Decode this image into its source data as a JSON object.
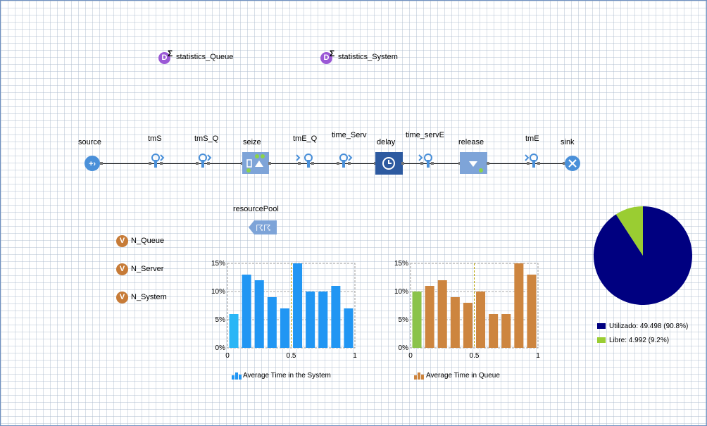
{
  "statistics": [
    {
      "icon": "D",
      "label": "statistics_Queue"
    },
    {
      "icon": "D",
      "label": "statistics_System"
    }
  ],
  "flow": {
    "source": "source",
    "tmS": "tmS",
    "tmS_Q": "tmS_Q",
    "seize": "seize",
    "tmE_Q": "tmE_Q",
    "time_Serv": "time_Serv",
    "delay": "delay",
    "time_servE": "time_servE",
    "release": "release",
    "tmE": "tmE",
    "sink": "sink"
  },
  "resourcePool": "resourcePool",
  "variables": [
    {
      "icon": "V",
      "label": "N_Queue"
    },
    {
      "icon": "V",
      "label": "N_Server"
    },
    {
      "icon": "V",
      "label": "N_System"
    }
  ],
  "colors": {
    "node": "#4a90d9",
    "delay": "#2d5aa0",
    "seize": "#7ea4d8",
    "sys_bar": "#2196f3",
    "sys_bar_light": "#29b6f6",
    "queue_bar": "#cd853f",
    "queue_bar_first": "#8bc34a",
    "pie_used": "#000080",
    "pie_free": "#9acd32"
  },
  "chart_data": [
    {
      "type": "bar",
      "title": "Average Time in the System",
      "legend": "Average Time in the System",
      "yticks": [
        "15%",
        "10%",
        "5%",
        "0%"
      ],
      "xticks": [
        "0",
        "0.5",
        "1"
      ],
      "ylim": [
        0,
        15
      ],
      "xlim": [
        0,
        1
      ],
      "mean_line": 0.5,
      "values": [
        6,
        13,
        12,
        9,
        7,
        15,
        10,
        10,
        11,
        7
      ]
    },
    {
      "type": "bar",
      "title": "Average Time in Queue",
      "legend": "Average Time in Queue",
      "yticks": [
        "15%",
        "10%",
        "5%",
        "0%"
      ],
      "xticks": [
        "0",
        "0.5",
        "1"
      ],
      "ylim": [
        0,
        15
      ],
      "xlim": [
        0,
        1
      ],
      "mean_line": 0.5,
      "values": [
        10,
        11,
        12,
        9,
        8,
        10,
        6,
        6,
        15,
        13
      ]
    },
    {
      "type": "pie",
      "slices": [
        {
          "label": "Utilizado: 49.498 (90.8%)",
          "value": 90.8
        },
        {
          "label": "Libre: 4.992 (9.2%)",
          "value": 9.2
        }
      ]
    }
  ]
}
